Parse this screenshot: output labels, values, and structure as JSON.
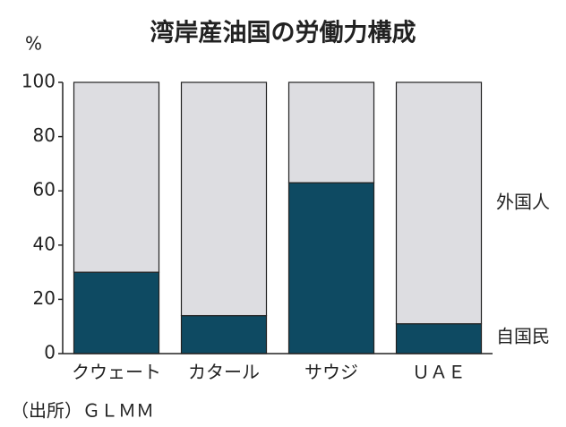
{
  "chart_data": {
    "type": "stacked-bar",
    "title": "湾岸産油国の労働力構成",
    "y_unit": "%",
    "categories": [
      "クウェート",
      "カタール",
      "サウジ",
      "ＵＡＥ"
    ],
    "series": [
      {
        "name": "自国民",
        "color": "#0e4a62",
        "values": [
          30,
          14,
          63,
          11
        ]
      },
      {
        "name": "外国人",
        "color": "#dddde1",
        "values": [
          70,
          86,
          37,
          89
        ]
      }
    ],
    "ylim": [
      0,
      100
    ],
    "yticks": [
      0,
      20,
      40,
      60,
      80,
      100
    ],
    "source": "（出所）ＧＬＭＭ"
  }
}
